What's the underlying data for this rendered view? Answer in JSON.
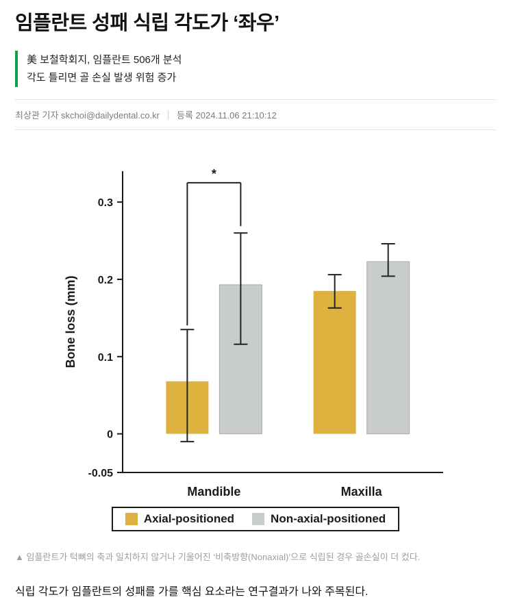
{
  "article": {
    "headline": "임플란트 성패 식립 각도가 ‘좌우’",
    "subhead_lines": [
      "美 보철학회지, 임플란트 506개 분석",
      "각도 틀리면 골 손실 발생 위험 증가"
    ],
    "byline": "최상관 기자 skchoi@dailydental.co.kr",
    "published": "등록 2024.11.06 21:10:12",
    "caption": "▲ 임플란트가 턱뼈의 축과 일치하지 않거나 기울어진 ‘비축방향(Nonaxial)’으로 식립된 경우 골손실이 더 컸다.",
    "body": "식립 각도가 임플란트의 성패를 가를 핵심 요소라는 연구결과가 나와 주목된다."
  },
  "colors": {
    "accent_green": "#0f9d4e",
    "axial_gold": "#ddb23e",
    "nonaxial_gray": "#c9cccd",
    "axis_black": "#1a1a1a"
  },
  "chart_data": {
    "type": "bar",
    "categories": [
      "Mandible",
      "Maxilla"
    ],
    "series": [
      {
        "name": "Axial-positioned",
        "color": "#ddb23e",
        "values": [
          0.068,
          0.185
        ],
        "error_low": [
          -0.01,
          0.163
        ],
        "error_high": [
          0.135,
          0.206
        ]
      },
      {
        "name": "Non-axial-positioned",
        "color": "#c9cccd",
        "values": [
          0.193,
          0.223
        ],
        "error_low": [
          0.116,
          0.204
        ],
        "error_high": [
          0.26,
          0.246
        ]
      }
    ],
    "title": "",
    "xlabel": "",
    "ylabel": "Bone loss (mm)",
    "yticks": [
      -0.05,
      0,
      0.1,
      0.2,
      0.3
    ],
    "ylim": [
      -0.05,
      0.34
    ],
    "grid": false,
    "legend_position": "bottom",
    "significance": {
      "group": "Mandible",
      "label": "*",
      "bar_y": 0.325
    }
  }
}
